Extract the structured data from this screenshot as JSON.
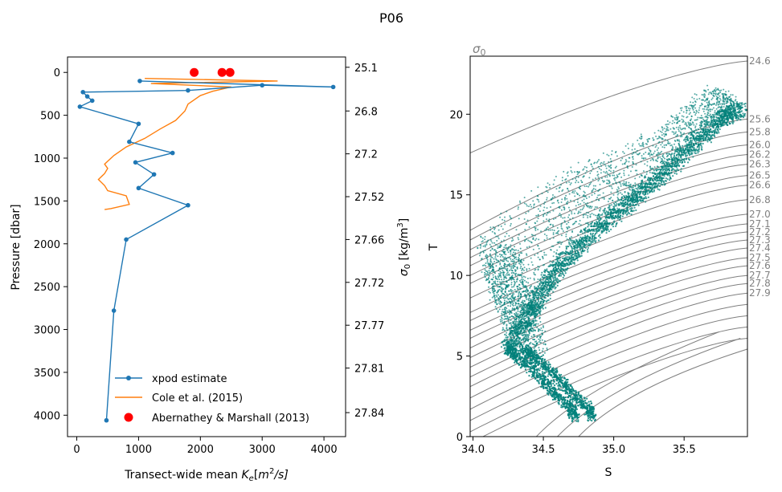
{
  "suptitle": "P06",
  "colors": {
    "xpod": "#1f77b4",
    "cole": "#ff7f0e",
    "am": "#ff0000",
    "ts": "#00807a",
    "contour": "#808080"
  },
  "chart_data": [
    {
      "type": "line",
      "xlabel": "Transect-wide mean K_e[m^2/s]",
      "xlabel_parts": {
        "prefix": "Transect-wide mean ",
        "k": "K",
        "e": "e",
        "bracket_open": "[",
        "m": "m",
        "two": "2",
        "slash": "/s]"
      },
      "ylabel": "Pressure [dbar]",
      "xlim": [
        -150,
        4350
      ],
      "ylim": [
        4250,
        -180
      ],
      "x_ticks": [
        0,
        1000,
        2000,
        3000,
        4000
      ],
      "x_tick_labels": [
        "0",
        "1000",
        "2000",
        "3000",
        "4000"
      ],
      "y_ticks": [
        0,
        500,
        1000,
        1500,
        2000,
        2500,
        3000,
        3500,
        4000
      ],
      "y_tick_labels": [
        "0",
        "500",
        "1000",
        "1500",
        "2000",
        "2500",
        "3000",
        "3500",
        "4000"
      ],
      "right_axis": {
        "label": "σ0 [kg/m3]",
        "label_parts": {
          "sigma": "σ",
          "sub": "0",
          "units": " [kg/m",
          "sup": "3",
          "close": "]"
        },
        "ticks_at_pressure": [
          -60,
          450,
          950,
          1450,
          1950,
          2450,
          2950,
          3450,
          3970
        ],
        "tick_labels": [
          "25.1",
          "26.8",
          "27.2",
          "27.52",
          "27.66",
          "27.72",
          "27.77",
          "27.81",
          "27.84"
        ]
      },
      "series": [
        {
          "name": "xpod estimate",
          "marker": "circle",
          "points": [
            [
              1020,
              100
            ],
            [
              4150,
              170
            ],
            [
              3000,
              150
            ],
            [
              1800,
              210
            ],
            [
              100,
              230
            ],
            [
              170,
              280
            ],
            [
              250,
              330
            ],
            [
              50,
              400
            ],
            [
              1000,
              600
            ],
            [
              850,
              810
            ],
            [
              1550,
              940
            ],
            [
              950,
              1050
            ],
            [
              1250,
              1190
            ],
            [
              1000,
              1350
            ],
            [
              1800,
              1550
            ],
            [
              800,
              1950
            ],
            [
              600,
              2780
            ],
            [
              480,
              4060
            ]
          ]
        },
        {
          "name": "Cole et al. (2015)",
          "marker": "none",
          "points": [
            [
              1100,
              70
            ],
            [
              3250,
              100
            ],
            [
              1200,
              130
            ],
            [
              2500,
              170
            ],
            [
              2200,
              220
            ],
            [
              2000,
              270
            ],
            [
              1800,
              370
            ],
            [
              1750,
              450
            ],
            [
              1600,
              560
            ],
            [
              1350,
              660
            ],
            [
              1100,
              770
            ],
            [
              800,
              870
            ],
            [
              600,
              970
            ],
            [
              450,
              1070
            ],
            [
              500,
              1120
            ],
            [
              450,
              1180
            ],
            [
              350,
              1250
            ],
            [
              450,
              1320
            ],
            [
              500,
              1380
            ],
            [
              800,
              1440
            ],
            [
              850,
              1540
            ],
            [
              550,
              1590
            ],
            [
              450,
              1600
            ]
          ]
        },
        {
          "name": "Abernathey & Marshall (2013)",
          "marker": "dot",
          "points": [
            [
              1900,
              0
            ],
            [
              2350,
              0
            ],
            [
              2480,
              0
            ]
          ]
        }
      ],
      "legend": {
        "position": "lower-right"
      }
    },
    {
      "type": "scatter",
      "title": "σ0",
      "title_parts": {
        "sigma": "σ",
        "sub": "0"
      },
      "xlabel": "S",
      "ylabel": "T",
      "xlim": [
        33.98,
        35.95
      ],
      "ylim": [
        0,
        23.6
      ],
      "x_ticks": [
        34.0,
        34.5,
        35.0,
        35.5
      ],
      "x_tick_labels": [
        "34.0",
        "34.5",
        "35.0",
        "35.5"
      ],
      "y_ticks": [
        0,
        5,
        10,
        15,
        20
      ],
      "y_tick_labels": [
        "0",
        "5",
        "10",
        "15",
        "20"
      ],
      "contour_labels": [
        "24.6",
        "25.6",
        "25.8",
        "26.0",
        "26.2",
        "26.3",
        "26.5",
        "26.6",
        "26.8",
        "27.0",
        "27.1",
        "27.2",
        "27.3",
        "27.4",
        "27.5",
        "27.6",
        "27.7",
        "27.8",
        "27.9"
      ],
      "contour_label_T_at_right": [
        23.3,
        19.7,
        18.9,
        18.1,
        17.5,
        16.9,
        16.2,
        15.6,
        14.7,
        13.8,
        13.2,
        12.7,
        12.2,
        11.7,
        11.1,
        10.6,
        10.0,
        9.5,
        8.9
      ],
      "contour_T_at_S34": [
        17.6,
        12.8,
        12.2,
        11.6,
        11.1,
        10.6,
        10.0,
        9.5,
        8.6,
        7.7,
        7.2,
        6.6,
        6.1,
        5.5,
        4.9,
        4.3,
        3.7,
        3.1,
        2.4
      ],
      "contour_lower_extra_T_at_right": [
        8.2,
        7.5,
        6.8,
        6.1
      ],
      "contour_lower_extra_T_at_S34": [
        1.7,
        1.0,
        0.3,
        -0.4
      ],
      "scatter_envelope": {
        "warm_upper": [
          [
            34.02,
            12.0
          ],
          [
            34.2,
            13.8
          ],
          [
            34.5,
            15.6
          ],
          [
            34.75,
            16.8
          ],
          [
            35.0,
            17.8
          ],
          [
            35.3,
            19.0
          ],
          [
            35.5,
            20.5
          ],
          [
            35.7,
            21.8
          ],
          [
            35.85,
            21.0
          ]
        ],
        "main_ridge": [
          [
            34.25,
            5.5
          ],
          [
            34.4,
            7.5
          ],
          [
            34.55,
            9.8
          ],
          [
            34.75,
            11.8
          ],
          [
            34.95,
            13.4
          ],
          [
            35.15,
            14.8
          ],
          [
            35.35,
            16.3
          ],
          [
            35.55,
            18.0
          ],
          [
            35.75,
            19.6
          ],
          [
            35.9,
            20.3
          ]
        ],
        "cool_branch": [
          [
            34.25,
            5.5
          ],
          [
            34.3,
            5.0
          ],
          [
            34.4,
            4.3
          ],
          [
            34.5,
            3.5
          ],
          [
            34.6,
            2.5
          ],
          [
            34.7,
            1.8
          ],
          [
            34.72,
            1.2
          ]
        ],
        "left_lobe": [
          [
            34.05,
            11.5
          ],
          [
            34.1,
            9.5
          ],
          [
            34.2,
            7.5
          ],
          [
            34.25,
            5.5
          ]
        ]
      }
    }
  ]
}
